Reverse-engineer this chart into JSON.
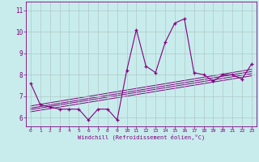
{
  "xlabel": "Windchill (Refroidissement éolien,°C)",
  "background_color": "#c8ecec",
  "line_color": "#800080",
  "x_data": [
    0,
    1,
    2,
    3,
    4,
    5,
    6,
    7,
    8,
    9,
    10,
    11,
    12,
    13,
    14,
    15,
    16,
    17,
    18,
    19,
    20,
    21,
    22,
    23
  ],
  "y_data": [
    7.6,
    6.6,
    6.5,
    6.4,
    6.4,
    6.4,
    5.9,
    6.4,
    6.4,
    5.9,
    8.2,
    10.1,
    8.4,
    8.1,
    9.5,
    10.4,
    10.6,
    8.1,
    8.0,
    7.7,
    8.0,
    8.0,
    7.8,
    8.5
  ],
  "regression_lines": [
    [
      0,
      6.55,
      23,
      8.25
    ],
    [
      0,
      6.45,
      23,
      8.15
    ],
    [
      0,
      6.38,
      23,
      8.05
    ],
    [
      0,
      6.28,
      23,
      7.95
    ]
  ],
  "xlim": [
    -0.5,
    23.5
  ],
  "ylim": [
    5.6,
    11.4
  ],
  "yticks": [
    6,
    7,
    8,
    9,
    10,
    11
  ],
  "xticks": [
    0,
    1,
    2,
    3,
    4,
    5,
    6,
    7,
    8,
    9,
    10,
    11,
    12,
    13,
    14,
    15,
    16,
    17,
    18,
    19,
    20,
    21,
    22,
    23
  ],
  "grid_color": "#b0c8c8",
  "marker": "+"
}
